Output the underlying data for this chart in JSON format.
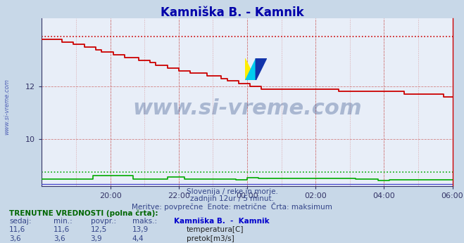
{
  "title": "Kamniška B. - Kamnik",
  "title_color": "#0000aa",
  "bg_color": "#c8d8e8",
  "plot_bg_color": "#e8eef8",
  "subtitle1": "Slovenija / reke in morje.",
  "subtitle2": "zadnjih 12ur / 5 minut.",
  "subtitle3": "Meritve: povprečne  Enote: metrične  Črta: maksimum",
  "xlim": [
    0,
    144
  ],
  "ylim": [
    8.2,
    14.6
  ],
  "yticks": [
    10,
    12
  ],
  "ytick_labels": [
    "10",
    "12"
  ],
  "xtick_labels": [
    "20:00",
    "22:00",
    "00:00",
    "02:00",
    "04:00",
    "06:00"
  ],
  "xtick_positions": [
    24,
    48,
    72,
    96,
    120,
    144
  ],
  "temp_max_val": 13.9,
  "flow_max_scaled": 8.72,
  "height_scaled": 8.27,
  "temp_color": "#cc0000",
  "flow_color": "#00aa00",
  "height_color": "#4444cc",
  "watermark": "www.si-vreme.com",
  "watermark_color": "#1a3a7a",
  "watermark_alpha": 0.3,
  "grid_color": "#cc6666",
  "legend_title": "Kamniška B.  -  Kamnik",
  "legend_items": [
    "temperatura[C]",
    "pretok[m3/s]"
  ],
  "legend_colors": [
    "#cc0000",
    "#00aa00"
  ],
  "currently_label": "TRENUTNE VREDNOSTI (polna črta):",
  "table_headers": [
    "sedaj:",
    "min.:",
    "povpr.:",
    "maks.:"
  ],
  "table_data": [
    [
      "11,6",
      "11,6",
      "12,5",
      "13,9"
    ],
    [
      "3,6",
      "3,6",
      "3,9",
      "4,4"
    ]
  ],
  "sidebar_text": "www.si-vreme.com",
  "sidebar_color": "#3344aa"
}
